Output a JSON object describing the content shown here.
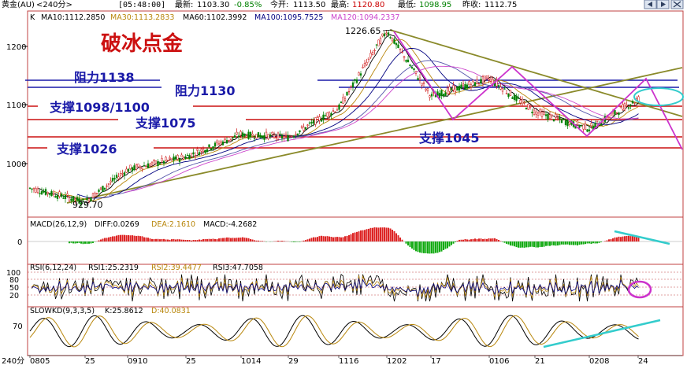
{
  "header": {
    "instrument": "黄金(AU)",
    "period": "<240分>",
    "time": "[05:48:00]",
    "latest_label": "最新:",
    "latest": "1103.30",
    "change": "-0.85%",
    "open_label": "今开:",
    "open": "1113.50",
    "high_label": "最高:",
    "high": "1120.80",
    "low_label": "最低:",
    "low": "1098.95",
    "prev_label": "昨收:",
    "prev": "1112.75"
  },
  "ma_legend": {
    "k": "K",
    "ma10": "MA10:1112.2850",
    "ma30": "MA30:1113.2833",
    "ma60": "MA60:1102.3992",
    "ma100": "MA100:1095.7525",
    "ma120": "MA120:1094.2337"
  },
  "annotations": {
    "title": "破冰点金",
    "r1138": "阻力1138",
    "r1130": "阻力1130",
    "s1098": "支撑1098/1100",
    "s1075": "支撑1075",
    "s1045": "支撑1045",
    "s1026": "支撑1026",
    "peak": "1226.65",
    "trough": "929.70"
  },
  "macd_legend": {
    "name": "MACD(26,12,9)",
    "diff": "DIFF:0.0269",
    "dea": "DEA:2.1610",
    "macd": "MACD:-4.2682"
  },
  "rsi_legend": {
    "name": "RSI(6,12,24)",
    "rsi1": "RSI1:25.2319",
    "rsi2": "RSI2:39.4477",
    "rsi3": "RSI3:47.7058"
  },
  "kd_legend": {
    "name": "SLOWKD(9,3,3,5)",
    "k": "K:25.8612",
    "d": "D:40.0831"
  },
  "x_axis": {
    "period": "240分",
    "ticks": [
      "0805",
      "25",
      "0910",
      "25",
      "1014",
      "29",
      "1116",
      "1202",
      "17",
      "0106",
      "21",
      "0208",
      "24"
    ]
  },
  "chart_data": [
    {
      "type": "line",
      "title": "黄金(AU)",
      "y_ticks": [
        "1200",
        "1100",
        "1000"
      ],
      "ylim": [
        905,
        1250
      ],
      "x": [
        "0805",
        "25",
        "0910",
        "25",
        "1014",
        "29",
        "1116",
        "1202",
        "17",
        "0106",
        "21",
        "0208",
        "24"
      ],
      "series": [
        {
          "name": "K",
          "values": [
            958,
            935,
            990,
            1012,
            1050,
            1045,
            1095,
            1227,
            1115,
            1145,
            1088,
            1060,
            1110
          ]
        }
      ],
      "horizontal_lines": [
        {
          "label": "阻力1138",
          "value": 1138
        },
        {
          "label": "阻力1130",
          "value": 1130
        },
        {
          "label": "支撑1098/1100",
          "value": 1098
        },
        {
          "label": "支撑1075",
          "value": 1075
        },
        {
          "label": "支撑1045",
          "value": 1045
        },
        {
          "label": "支撑1026",
          "value": 1026
        }
      ],
      "annotations": [
        "1226.65",
        "929.70"
      ],
      "colors": {
        "resistance": "#1a1aa8",
        "support": "#cc1111",
        "trend": "#8a8a2a",
        "pattern": "#cc33cc",
        "highlight": "#33cccc"
      }
    },
    {
      "type": "bar",
      "title": "MACD(26,12,9)",
      "y_ticks": [
        "0"
      ],
      "series": [
        {
          "name": "DIFF",
          "value": 0.0269
        },
        {
          "name": "DEA",
          "value": 2.161
        },
        {
          "name": "MACD",
          "value": -4.2682
        }
      ]
    },
    {
      "type": "line",
      "title": "RSI(6,12,24)",
      "y_ticks": [
        "100",
        "80",
        "50",
        "20"
      ],
      "ylim": [
        0,
        100
      ],
      "series": [
        {
          "name": "RSI1",
          "value": 25.2319
        },
        {
          "name": "RSI2",
          "value": 39.4477
        },
        {
          "name": "RSI3",
          "value": 47.7058
        }
      ]
    },
    {
      "type": "line",
      "title": "SLOWKD(9,3,3,5)",
      "y_ticks": [
        "70"
      ],
      "series": [
        {
          "name": "K",
          "value": 25.8612
        },
        {
          "name": "D",
          "value": 40.0831
        }
      ]
    }
  ]
}
